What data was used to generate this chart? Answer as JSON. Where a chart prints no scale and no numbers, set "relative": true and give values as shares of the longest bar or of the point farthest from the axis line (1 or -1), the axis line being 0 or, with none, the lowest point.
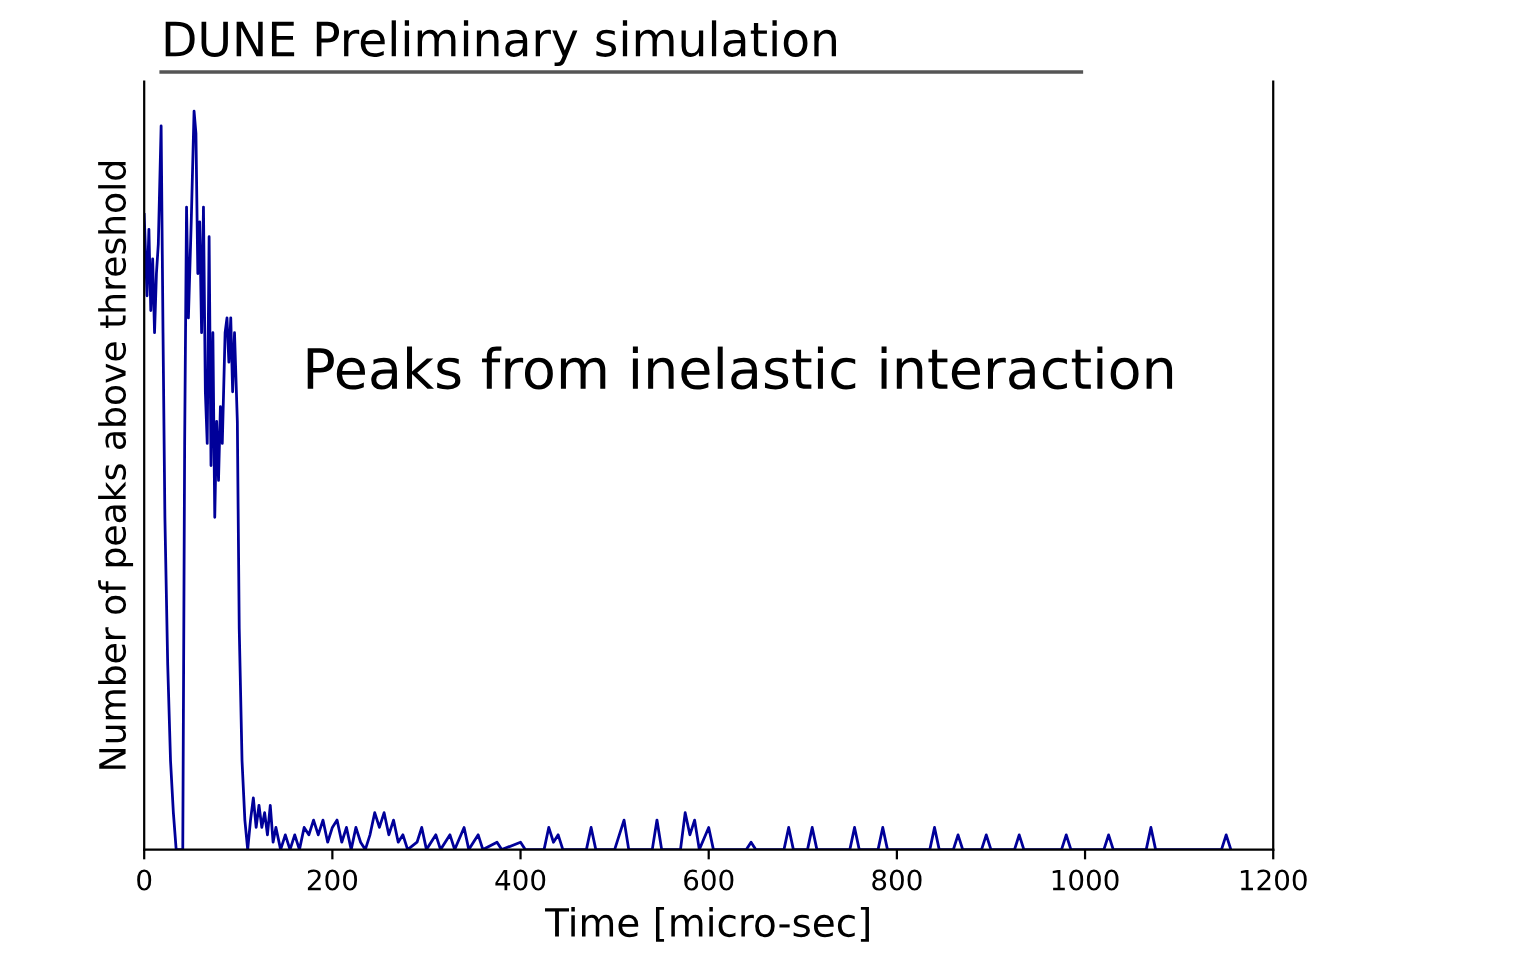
{
  "chart_data": {
    "type": "line",
    "title": "DUNE Preliminary simulation",
    "xlabel": "Time [micro-sec]",
    "ylabel": "Number of peaks above threshold",
    "annotations": [
      "Peaks from inelastic interaction"
    ],
    "relative": true,
    "xlim": [
      0,
      1200
    ],
    "xticks": [
      0,
      200,
      400,
      600,
      800,
      1000,
      1200
    ],
    "grid": false,
    "legend": false,
    "marker": "none",
    "line_style": "solid",
    "series": [
      {
        "color": "#000099",
        "x": [
          0,
          3,
          5,
          7,
          9,
          11,
          13,
          15,
          18,
          20,
          22,
          25,
          28,
          31,
          34,
          38,
          41,
          43,
          45,
          47,
          50,
          53,
          55,
          57,
          59,
          61,
          63,
          65,
          67,
          69,
          71,
          73,
          75,
          77,
          79,
          81,
          83,
          86,
          88,
          90,
          92,
          94,
          96,
          99,
          101,
          104,
          107,
          110,
          113,
          116,
          119,
          122,
          125,
          128,
          131,
          134,
          137,
          140,
          145,
          150,
          155,
          160,
          165,
          170,
          175,
          180,
          185,
          190,
          195,
          200,
          205,
          210,
          215,
          220,
          225,
          230,
          235,
          240,
          245,
          250,
          255,
          260,
          265,
          270,
          275,
          280,
          290,
          295,
          300,
          310,
          315,
          325,
          330,
          340,
          345,
          355,
          360,
          375,
          380,
          400,
          405,
          425,
          430,
          435,
          440,
          445,
          470,
          475,
          480,
          500,
          505,
          510,
          515,
          540,
          545,
          550,
          570,
          575,
          580,
          585,
          590,
          600,
          605,
          640,
          645,
          650,
          680,
          685,
          690,
          705,
          710,
          715,
          750,
          755,
          760,
          780,
          785,
          790,
          835,
          840,
          845,
          860,
          865,
          870,
          890,
          895,
          900,
          925,
          930,
          935,
          975,
          980,
          985,
          1020,
          1025,
          1030,
          1065,
          1070,
          1075,
          1145,
          1150,
          1155
        ],
        "values": [
          0.86,
          0.75,
          0.84,
          0.73,
          0.8,
          0.7,
          0.78,
          0.82,
          0.98,
          0.7,
          0.45,
          0.25,
          0.12,
          0.05,
          0,
          0,
          0,
          0.55,
          0.87,
          0.72,
          0.85,
          1,
          0.97,
          0.78,
          0.85,
          0.7,
          0.87,
          0.62,
          0.55,
          0.83,
          0.52,
          0.7,
          0.45,
          0.58,
          0.5,
          0.6,
          0.55,
          0.7,
          0.72,
          0.66,
          0.72,
          0.62,
          0.7,
          0.58,
          0.3,
          0.12,
          0.04,
          0,
          0.04,
          0.07,
          0.03,
          0.06,
          0.03,
          0.05,
          0.02,
          0.06,
          0.01,
          0.03,
          0,
          0.02,
          0,
          0.02,
          0,
          0.03,
          0.02,
          0.04,
          0.02,
          0.04,
          0.01,
          0.03,
          0.04,
          0.01,
          0.03,
          0,
          0.03,
          0.01,
          0,
          0.02,
          0.05,
          0.03,
          0.05,
          0.02,
          0.04,
          0.01,
          0.02,
          0,
          0.01,
          0.03,
          0,
          0.02,
          0,
          0.02,
          0,
          0.03,
          0,
          0.02,
          0,
          0.01,
          0,
          0.01,
          0,
          0,
          0.03,
          0.01,
          0.02,
          0,
          0,
          0.03,
          0,
          0,
          0.02,
          0.04,
          0,
          0,
          0.04,
          0,
          0,
          0.05,
          0.02,
          0.04,
          0,
          0.03,
          0,
          0,
          0.01,
          0,
          0,
          0.03,
          0,
          0,
          0.03,
          0,
          0,
          0.03,
          0,
          0,
          0.03,
          0,
          0,
          0.03,
          0,
          0,
          0.02,
          0,
          0,
          0.02,
          0,
          0,
          0.02,
          0,
          0,
          0.02,
          0,
          0,
          0.02,
          0,
          0,
          0.03,
          0,
          0,
          0.02,
          0
        ]
      }
    ]
  }
}
